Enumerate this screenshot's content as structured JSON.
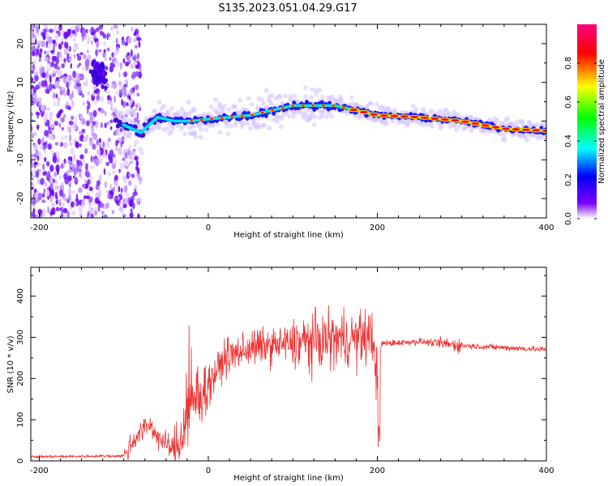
{
  "title": "S135.2023.051.04.29.G17",
  "chart_data": [
    {
      "type": "heatmap",
      "xlabel": "Height of straight line (km)",
      "ylabel": "Frequency (Hz)",
      "xlim": [
        -210,
        400
      ],
      "ylim": [
        -25,
        25
      ],
      "xticks": [
        -200,
        0,
        200,
        400
      ],
      "yticks": [
        -20,
        -10,
        0,
        10,
        20
      ],
      "colorbar": {
        "label": "Normalized spectral amplitude",
        "range": [
          0,
          1
        ],
        "ticks": [
          "0.0",
          "0.2",
          "0.4",
          "0.6",
          "0.8"
        ]
      },
      "ridge": {
        "x": [
          -110,
          -80,
          -60,
          -40,
          -20,
          0,
          50,
          100,
          150,
          200,
          250,
          300,
          350,
          400
        ],
        "y": [
          0,
          -3,
          1,
          0,
          0,
          0.5,
          1.5,
          4,
          4,
          1.5,
          1,
          0,
          -2,
          -2.5
        ]
      }
    },
    {
      "type": "line",
      "xlabel": "Height of straight line (km)",
      "ylabel": "SNR (10 * v/v)",
      "xlim": [
        -210,
        400
      ],
      "ylim": [
        0,
        470
      ],
      "xticks": [
        -200,
        0,
        200,
        400
      ],
      "yticks": [
        0,
        100,
        200,
        300,
        400
      ],
      "series": [
        {
          "color": "#ee3333",
          "x": [
            -210,
            -100,
            -85,
            -70,
            -60,
            -50,
            -40,
            -35,
            -25,
            -15,
            0,
            20,
            50,
            100,
            150,
            195,
            200,
            205,
            250,
            300,
            350,
            400
          ],
          "y": [
            10,
            12,
            60,
            90,
            60,
            40,
            25,
            40,
            120,
            150,
            185,
            250,
            275,
            285,
            295,
            300,
            200,
            285,
            290,
            280,
            275,
            270
          ]
        }
      ]
    }
  ]
}
